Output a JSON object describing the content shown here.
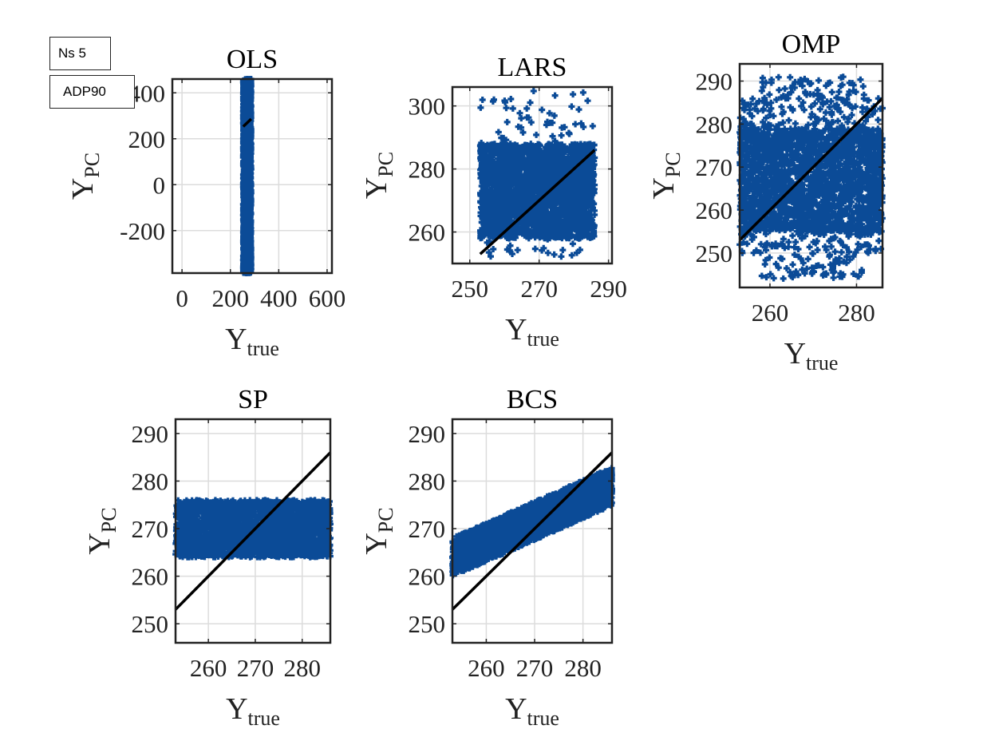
{
  "figure": {
    "annotations": [
      "Ns 5",
      "ADP90"
    ],
    "marker_color": "#0b4b97",
    "line_color": "#000000",
    "grid_color": "#dcdcdc"
  },
  "chart_data": [
    {
      "type": "scatter",
      "title": "OLS",
      "xlabel": "Y_true",
      "ylabel": "Y_PC",
      "xlim": [
        -40,
        620
      ],
      "ylim": [
        -385,
        460
      ],
      "xticks": [
        0,
        200,
        400,
        600
      ],
      "xtick_labels": [
        "0",
        "200",
        "400",
        "600"
      ],
      "yticks": [
        -200,
        0,
        200,
        400
      ],
      "ytick_labels": [
        "-200",
        "0",
        "200",
        "400"
      ],
      "grid": true,
      "points": {
        "x_range": [
          253,
          286
        ],
        "y_range": [
          -385,
          460
        ]
      },
      "reference_line": {
        "x": [
          253,
          286
        ],
        "y": [
          253,
          286
        ]
      }
    },
    {
      "type": "scatter",
      "title": "LARS",
      "xlabel": "Y_true",
      "ylabel": "Y_PC",
      "xlim": [
        245,
        291
      ],
      "ylim": [
        250,
        306
      ],
      "xticks": [
        250,
        270,
        290
      ],
      "xtick_labels": [
        "250",
        "270",
        "290"
      ],
      "yticks": [
        260,
        280,
        300
      ],
      "ytick_labels": [
        "260",
        "280",
        "300"
      ],
      "grid": true,
      "points": {
        "x_range": [
          253,
          286
        ],
        "y_range": [
          252,
          305
        ]
      },
      "reference_line": {
        "x": [
          253,
          286
        ],
        "y": [
          253,
          286
        ]
      }
    },
    {
      "type": "scatter",
      "title": "OMP",
      "xlabel": "Y_true",
      "ylabel": "Y_PC",
      "xlim": [
        253,
        286
      ],
      "ylim": [
        242,
        294
      ],
      "xticks": [
        260,
        280
      ],
      "xtick_labels": [
        "260",
        "280"
      ],
      "yticks": [
        250,
        260,
        270,
        280,
        290
      ],
      "ytick_labels": [
        "250",
        "260",
        "270",
        "280",
        "290"
      ],
      "grid": true,
      "points": {
        "x_range": [
          253,
          286
        ],
        "y_range": [
          244,
          291
        ]
      },
      "reference_line": {
        "x": [
          253,
          286
        ],
        "y": [
          253,
          286
        ]
      }
    },
    {
      "type": "scatter",
      "title": "SP",
      "xlabel": "Y_true",
      "ylabel": "Y_PC",
      "xlim": [
        253,
        286
      ],
      "ylim": [
        246,
        293
      ],
      "xticks": [
        260,
        270,
        280
      ],
      "xtick_labels": [
        "260",
        "270",
        "280"
      ],
      "yticks": [
        250,
        260,
        270,
        280,
        290
      ],
      "ytick_labels": [
        "250",
        "260",
        "270",
        "280",
        "290"
      ],
      "grid": true,
      "points": {
        "x_range": [
          253,
          286
        ],
        "y_range": [
          264,
          276
        ]
      },
      "reference_line": {
        "x": [
          253,
          286
        ],
        "y": [
          253,
          286
        ]
      }
    },
    {
      "type": "scatter",
      "title": "BCS",
      "xlabel": "Y_true",
      "ylabel": "Y_PC",
      "xlim": [
        253,
        286
      ],
      "ylim": [
        246,
        293
      ],
      "xticks": [
        260,
        270,
        280
      ],
      "xtick_labels": [
        "260",
        "270",
        "280"
      ],
      "yticks": [
        250,
        260,
        270,
        280,
        290
      ],
      "ytick_labels": [
        "250",
        "260",
        "270",
        "280",
        "290"
      ],
      "grid": true,
      "points": {
        "x_range": [
          253,
          286
        ],
        "trend": "y ≈ 264 + 0.45·(x − 253), spread ±4"
      },
      "reference_line": {
        "x": [
          253,
          286
        ],
        "y": [
          253,
          286
        ]
      }
    }
  ]
}
